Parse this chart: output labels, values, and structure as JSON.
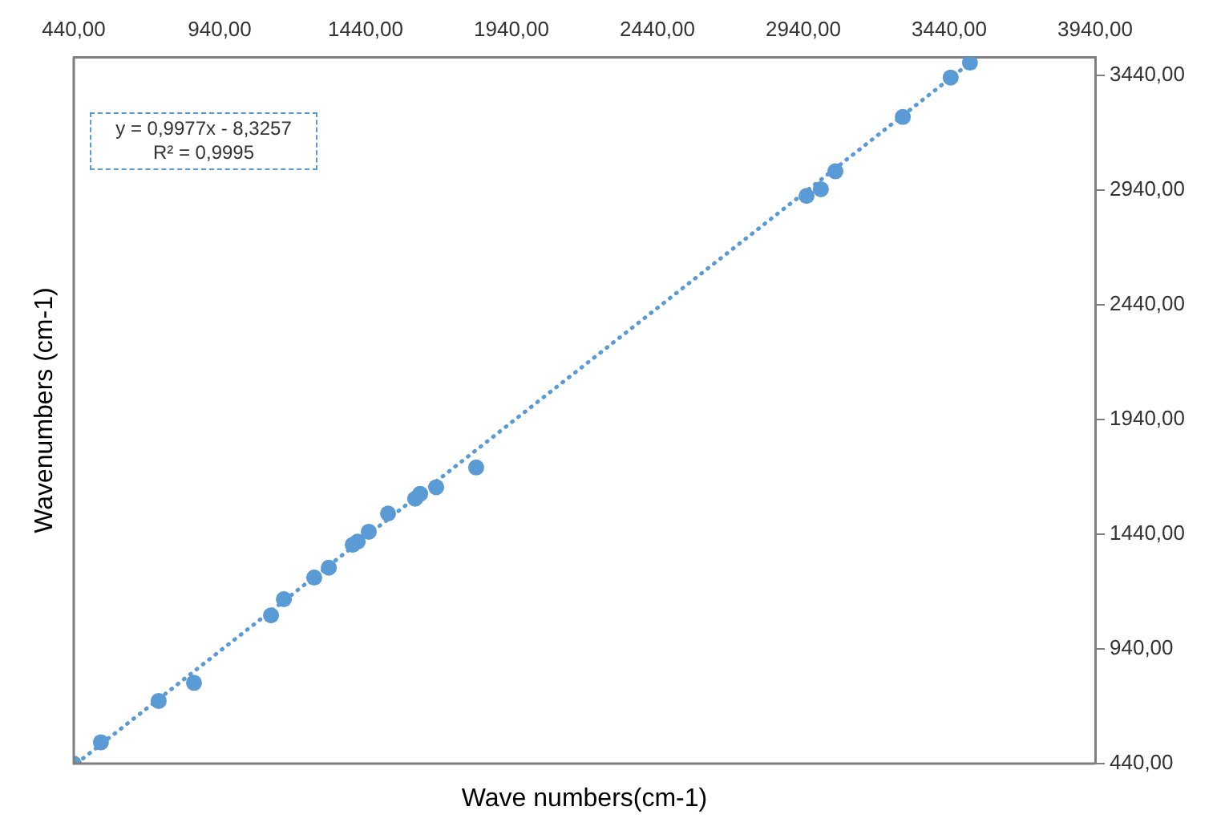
{
  "chart_data": {
    "type": "scatter",
    "xlabel": "Wave numbers(cm-1)",
    "ylabel": "Wavenumbers (cm-1)",
    "annotations": [
      "y = 0,9977x - 8,3257",
      "R² = 0,9995"
    ],
    "xlim": [
      440,
      3940
    ],
    "ylim": [
      440,
      3520
    ],
    "xticks": [
      {
        "value": 440,
        "label": "440,00"
      },
      {
        "value": 940,
        "label": "940,00"
      },
      {
        "value": 1440,
        "label": "1440,00"
      },
      {
        "value": 1940,
        "label": "1940,00"
      },
      {
        "value": 2440,
        "label": "2440,00"
      },
      {
        "value": 2940,
        "label": "2940,00"
      },
      {
        "value": 3440,
        "label": "3440,00"
      },
      {
        "value": 3940,
        "label": "3940,00"
      }
    ],
    "yticks": [
      {
        "value": 440,
        "label": "440,00"
      },
      {
        "value": 940,
        "label": "940,00"
      },
      {
        "value": 1440,
        "label": "1440,00"
      },
      {
        "value": 1940,
        "label": "1940,00"
      },
      {
        "value": 2440,
        "label": "2440,00"
      },
      {
        "value": 2940,
        "label": "2940,00"
      },
      {
        "value": 3440,
        "label": "3440,00"
      }
    ],
    "grid": false,
    "legend": false,
    "marker": "circle",
    "series": [
      {
        "color": "#5b9bd5",
        "x": [
          440,
          533,
          731,
          852,
          1116,
          1160,
          1264,
          1314,
          1396,
          1413,
          1451,
          1517,
          1610,
          1627,
          1682,
          1819,
          2951,
          3000,
          3050,
          3281,
          3445,
          3511
        ],
        "values": [
          440,
          533,
          713,
          792,
          1086,
          1157,
          1251,
          1294,
          1394,
          1408,
          1451,
          1530,
          1595,
          1616,
          1645,
          1731,
          2915,
          2944,
          3022,
          3259,
          3431,
          3496
        ]
      },
      {
        "type": "line",
        "color": "#5b9bd5",
        "line_style": "dotted",
        "marker": "none",
        "x": [
          450,
          3511
        ],
        "values": [
          441,
          3495
        ]
      }
    ]
  }
}
